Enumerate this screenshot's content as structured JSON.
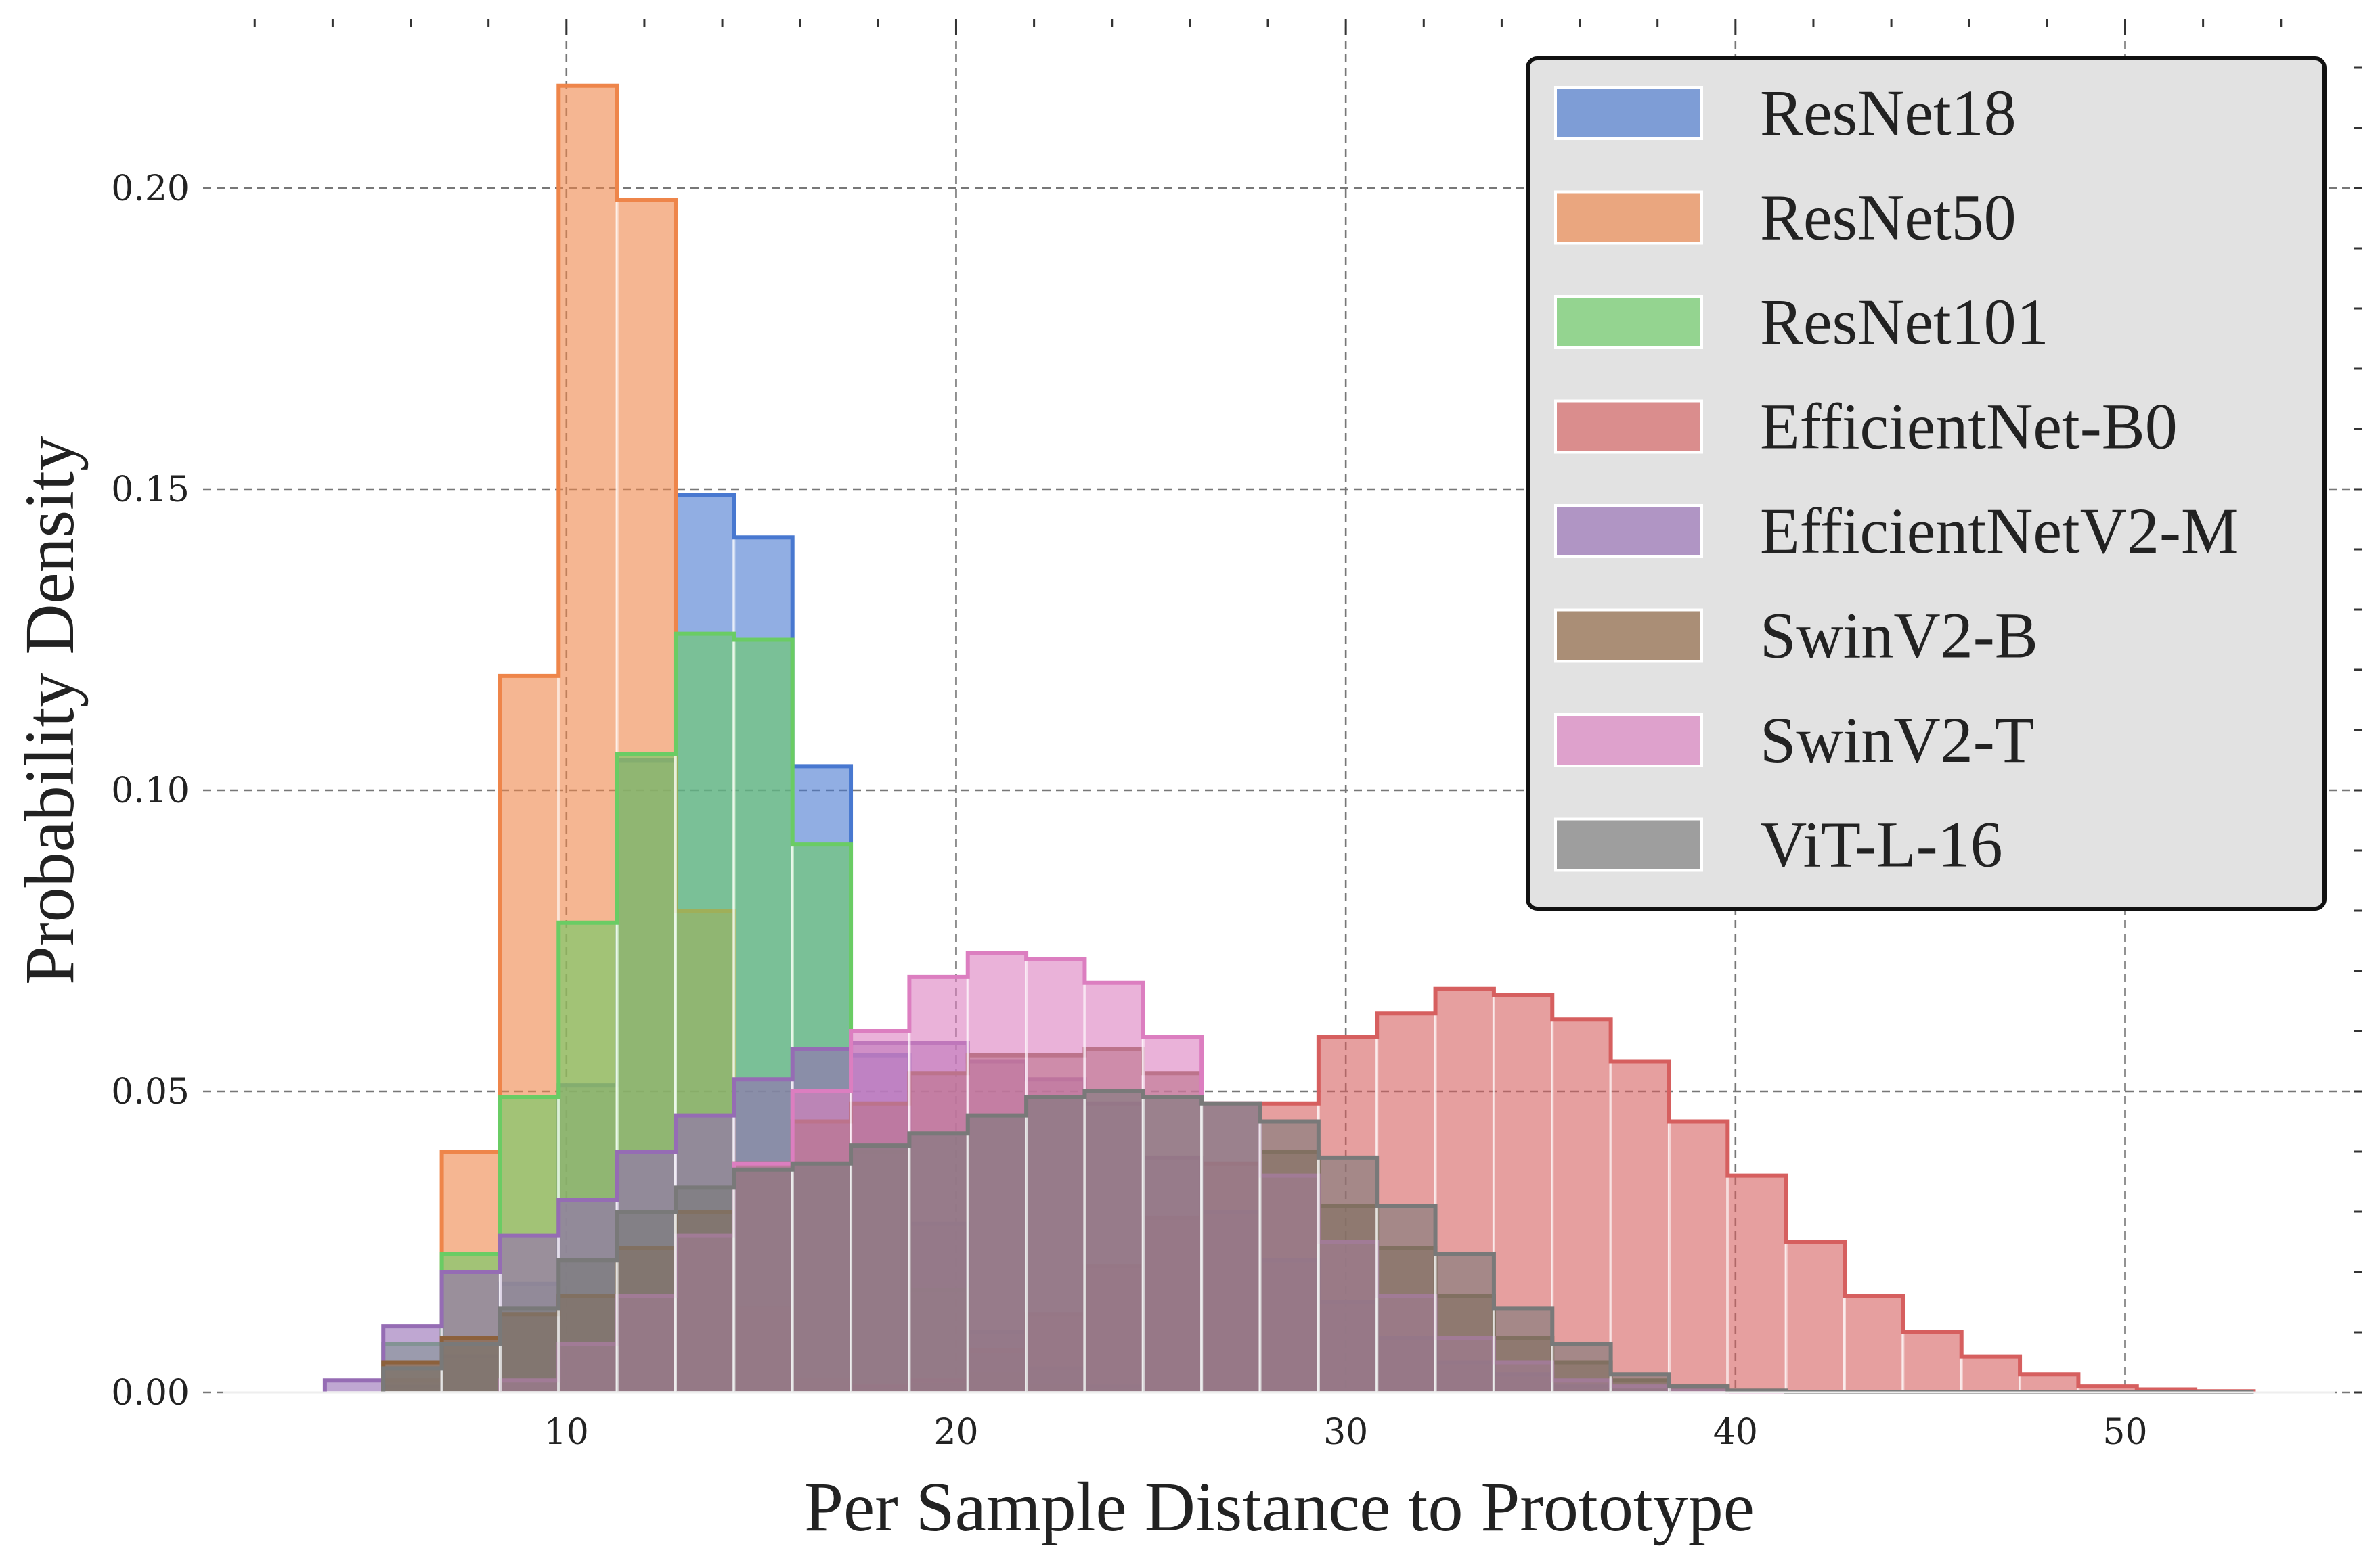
{
  "chart_data": {
    "type": "histogram",
    "xlabel": "Per Sample Distance to Prototype",
    "ylabel": "Probability Density",
    "xlim": [
      1.6,
      55.6
    ],
    "ylim": [
      0,
      0.23
    ],
    "xticks": [
      10,
      20,
      30,
      40,
      50
    ],
    "xtick_labels": [
      "10",
      "20",
      "30",
      "40",
      "50"
    ],
    "yticks": [
      0.0,
      0.05,
      0.1,
      0.15,
      0.2
    ],
    "ytick_labels": [
      "0.00",
      "0.05",
      "0.10",
      "0.15",
      "0.20"
    ],
    "grid": true,
    "legend_position": "upper-right",
    "bin_edges": [
      3.8,
      5.3,
      6.8,
      8.3,
      9.8,
      11.3,
      12.8,
      14.3,
      15.8,
      17.3,
      18.8,
      20.3,
      21.8,
      23.3,
      24.8,
      26.3,
      27.8,
      29.3,
      30.8,
      32.3,
      33.8,
      35.3,
      36.8,
      38.3,
      39.8,
      41.3,
      42.8,
      44.3,
      45.8,
      47.3,
      48.8,
      50.3,
      51.8,
      53.3
    ],
    "series": [
      {
        "name": "ResNet18",
        "color": "#4878d0",
        "values": [
          0,
          0.001,
          0.006,
          0.018,
          0.051,
          0.105,
          0.149,
          0.142,
          0.104,
          0.056,
          0.028,
          0.01,
          0.004,
          0.001,
          0,
          0,
          0,
          0,
          0,
          0,
          0,
          0,
          0,
          0,
          0,
          0,
          0,
          0,
          0,
          0,
          0,
          0,
          0
        ]
      },
      {
        "name": "ResNet50",
        "color": "#ee854a",
        "values": [
          0,
          0.002,
          0.04,
          0.119,
          0.217,
          0.198,
          0.08,
          0.014,
          0.002,
          0,
          0,
          0,
          0,
          0,
          0,
          0,
          0,
          0,
          0,
          0,
          0,
          0,
          0,
          0,
          0,
          0,
          0,
          0,
          0,
          0,
          0,
          0,
          0
        ]
      },
      {
        "name": "ResNet101",
        "color": "#6acc64",
        "values": [
          0,
          0.008,
          0.023,
          0.049,
          0.078,
          0.106,
          0.126,
          0.125,
          0.091,
          0.04,
          0.017,
          0.003,
          0.001,
          0,
          0,
          0,
          0,
          0,
          0,
          0,
          0,
          0,
          0,
          0,
          0,
          0,
          0,
          0,
          0,
          0,
          0,
          0,
          0
        ]
      },
      {
        "name": "EfficientNet-B0",
        "color": "#d65f5f",
        "values": [
          0,
          0,
          0,
          0,
          0,
          0,
          0,
          0,
          0,
          0.001,
          0.002,
          0.007,
          0.013,
          0.021,
          0.029,
          0.038,
          0.048,
          0.059,
          0.063,
          0.067,
          0.066,
          0.062,
          0.055,
          0.045,
          0.036,
          0.025,
          0.016,
          0.01,
          0.006,
          0.003,
          0.001,
          0.0005,
          0.0002
        ]
      },
      {
        "name": "EfficientNetV2-M",
        "color": "#956cb4",
        "values": [
          0.002,
          0.011,
          0.02,
          0.026,
          0.032,
          0.04,
          0.046,
          0.052,
          0.057,
          0.058,
          0.058,
          0.055,
          0.052,
          0.048,
          0.039,
          0.03,
          0.022,
          0.015,
          0.009,
          0.005,
          0.003,
          0.001,
          0.0003,
          0,
          0,
          0,
          0,
          0,
          0,
          0,
          0,
          0,
          0
        ]
      },
      {
        "name": "SwinV2-B",
        "color": "#8c613c",
        "values": [
          0,
          0.005,
          0.009,
          0.013,
          0.016,
          0.024,
          0.03,
          0.038,
          0.045,
          0.048,
          0.053,
          0.056,
          0.056,
          0.057,
          0.053,
          0.048,
          0.04,
          0.031,
          0.024,
          0.016,
          0.009,
          0.005,
          0.002,
          0.001,
          0.0003,
          0,
          0,
          0,
          0,
          0,
          0,
          0,
          0
        ]
      },
      {
        "name": "SwinV2-T",
        "color": "#dc7ec0",
        "values": [
          0,
          0,
          0,
          0.002,
          0.008,
          0.016,
          0.026,
          0.038,
          0.05,
          0.06,
          0.069,
          0.073,
          0.072,
          0.068,
          0.059,
          0.048,
          0.036,
          0.025,
          0.016,
          0.009,
          0.005,
          0.002,
          0.001,
          0.0003,
          0,
          0,
          0,
          0,
          0,
          0,
          0,
          0,
          0
        ]
      },
      {
        "name": "ViT-L-16",
        "color": "#797979",
        "values": [
          0,
          0.004,
          0.008,
          0.014,
          0.022,
          0.03,
          0.034,
          0.037,
          0.038,
          0.041,
          0.043,
          0.046,
          0.049,
          0.05,
          0.049,
          0.048,
          0.045,
          0.039,
          0.031,
          0.023,
          0.014,
          0.008,
          0.003,
          0.001,
          0.0003,
          0,
          0,
          0,
          0,
          0,
          0,
          0,
          0
        ]
      }
    ]
  }
}
